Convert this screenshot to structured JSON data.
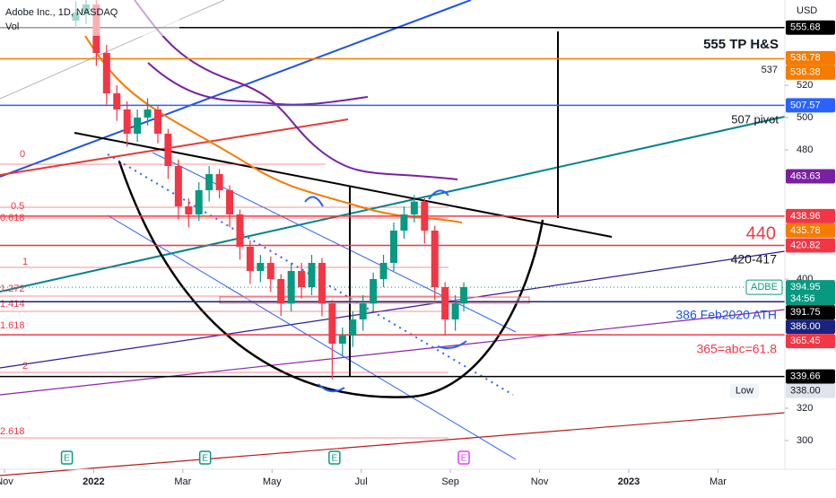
{
  "chart_data": {
    "type": "candlestick",
    "title": "Adobe Inc., 1D, NASDAQ",
    "subtitle": "Vol",
    "y_axis_label": "USD",
    "x": [
      1.6,
      1.83,
      2.06,
      2.29,
      2.52,
      2.75,
      2.98,
      3.21,
      3.44,
      3.67,
      3.9,
      4.13,
      4.36,
      4.59,
      4.82,
      5.05,
      5.28,
      5.51,
      5.74,
      5.97,
      6.2,
      6.43,
      6.66,
      6.89,
      7.12,
      7.35,
      7.58,
      7.81,
      8.04,
      8.27,
      8.5,
      8.73,
      8.96,
      9.19,
      9.42,
      9.65,
      9.88,
      10.11,
      10.3
    ],
    "open": [
      560,
      565,
      570,
      540,
      515,
      505,
      490,
      500,
      505,
      490,
      470,
      445,
      440,
      455,
      465,
      455,
      440,
      420,
      405,
      410,
      400,
      385,
      405,
      395,
      410,
      385,
      360,
      365,
      375,
      385,
      400,
      410,
      430,
      440,
      448,
      430,
      395,
      375,
      385
    ],
    "high": [
      572,
      578,
      575,
      545,
      520,
      510,
      505,
      512,
      508,
      493,
      474,
      450,
      460,
      470,
      468,
      458,
      443,
      424,
      415,
      414,
      403,
      410,
      410,
      415,
      413,
      387,
      370,
      380,
      390,
      404,
      415,
      435,
      445,
      452,
      450,
      433,
      398,
      390,
      398
    ],
    "low": [
      555,
      558,
      532,
      508,
      498,
      482,
      485,
      495,
      484,
      462,
      437,
      432,
      436,
      448,
      450,
      432,
      412,
      397,
      398,
      392,
      377,
      380,
      388,
      390,
      377,
      338,
      352,
      358,
      368,
      380,
      395,
      405,
      425,
      435,
      422,
      387,
      365,
      368,
      380
    ],
    "close": [
      565,
      570,
      540,
      515,
      505,
      490,
      500,
      505,
      490,
      470,
      445,
      440,
      455,
      465,
      455,
      440,
      420,
      405,
      410,
      400,
      385,
      405,
      395,
      410,
      385,
      360,
      365,
      375,
      385,
      400,
      410,
      430,
      440,
      448,
      430,
      395,
      375,
      385,
      395
    ],
    "up_color": "#089981",
    "down_color": "#f23645",
    "ylim": [
      282.2,
      572.8
    ],
    "yticks": [
      300,
      320,
      400,
      480,
      500,
      520
    ],
    "xlim": [
      -0.1,
      17.5
    ],
    "xticks": [
      {
        "value": 0,
        "label": "Nov"
      },
      {
        "value": 2,
        "label": "2022"
      },
      {
        "value": 4,
        "label": "Mar"
      },
      {
        "value": 6,
        "label": "May"
      },
      {
        "value": 8,
        "label": "Jul"
      },
      {
        "value": 10,
        "label": "Sep"
      },
      {
        "value": 12,
        "label": "Nov"
      },
      {
        "value": 14,
        "label": "2023"
      },
      {
        "value": 16,
        "label": "Mar"
      }
    ],
    "price_labels": [
      {
        "value": 555.68,
        "label": "555.68",
        "color": "#000000",
        "hline": true
      },
      {
        "value": 536.78,
        "label": "536.78",
        "color": "#f57c00",
        "hline": false
      },
      {
        "value": 536.38,
        "label": "536.38",
        "color": "#f57c00",
        "hline": true
      },
      {
        "value": 507.57,
        "label": "507.57",
        "color": "#2962ff",
        "hline": true
      },
      {
        "value": 463.63,
        "label": "463.63",
        "color": "#7b1fa2",
        "hline": false
      },
      {
        "value": 438.96,
        "label": "438.96",
        "color": "#f23645",
        "hline": true
      },
      {
        "value": 435.78,
        "label": "435.78",
        "color": "#f57c00",
        "hline": false
      },
      {
        "value": 420.82,
        "label": "420.82",
        "color": "#f23645",
        "hline": true
      },
      {
        "value": 391.75,
        "label": "391.75",
        "color": "#000000",
        "hline": false
      },
      {
        "value": 386.0,
        "label": "386.00",
        "color": "#1a237e",
        "hline": true
      },
      {
        "value": 365.45,
        "label": "365.45",
        "color": "#f23645",
        "hline": true
      },
      {
        "value": 339.66,
        "label": "339.66",
        "color": "#000000",
        "hline": true
      }
    ],
    "current_price": {
      "symbol": "ADBE",
      "value": 394.95,
      "label": "394.95",
      "countdown": "34:56",
      "color": "#089981"
    },
    "low_marker": {
      "text": "Low",
      "value": 338.0,
      "label": "338.00"
    },
    "annotations": [
      "555 TP H&S",
      "537",
      "507 pivot",
      "440",
      "420-417",
      "386 Feb2020 ATH",
      "365=abc=61.8"
    ],
    "fib_labels": [
      "0",
      "0.5",
      "0.618",
      "1",
      "1.272",
      "1.414",
      "1.618",
      "2",
      "2.618"
    ],
    "earnings": {
      "x": [
        1.4,
        4.5,
        7.4,
        10.3
      ],
      "labels": [
        "E",
        "E",
        "E",
        "E"
      ],
      "colors": [
        "#089981",
        "#089981",
        "#089981",
        "#e040fb"
      ]
    }
  }
}
